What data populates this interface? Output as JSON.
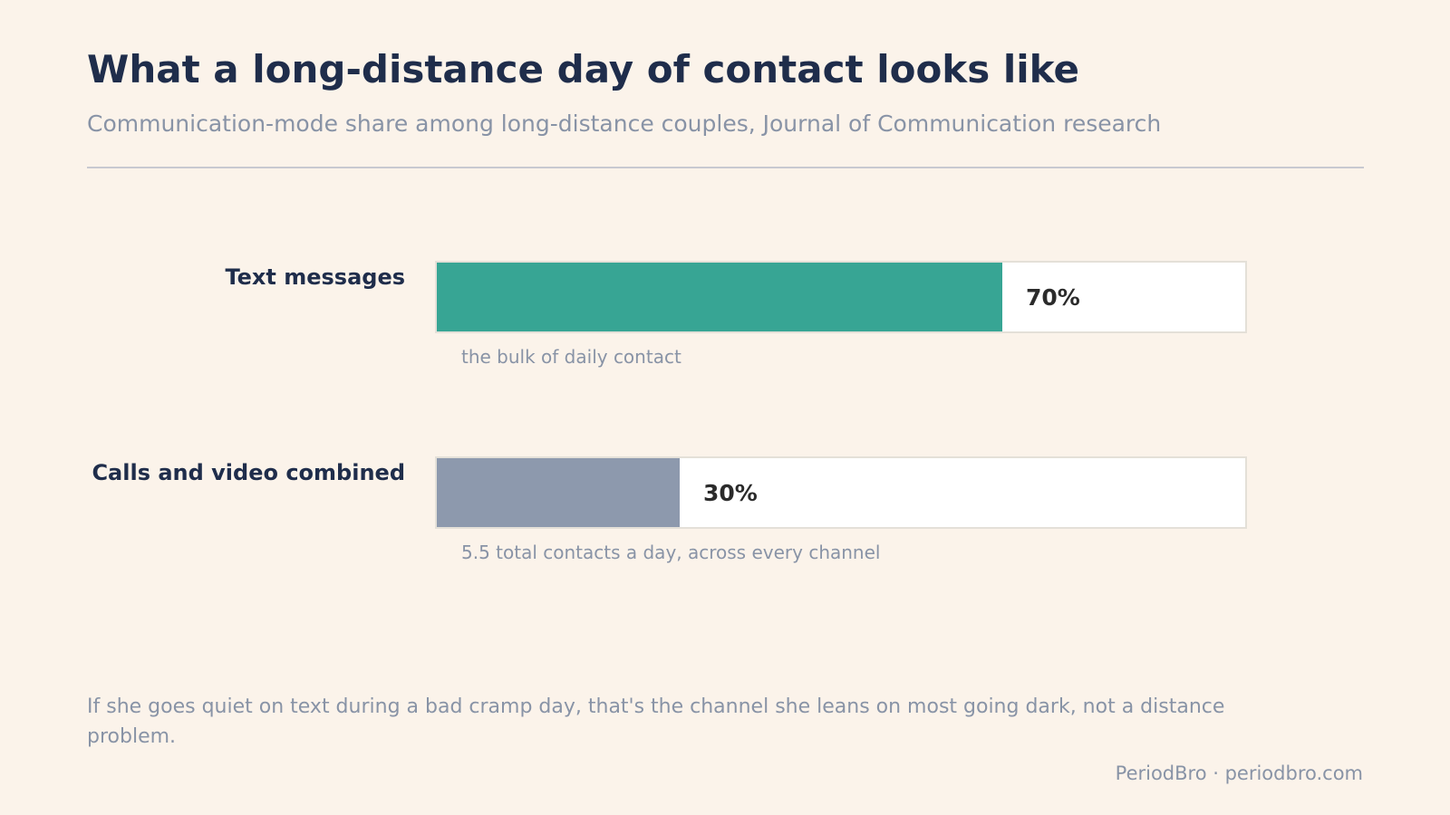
{
  "title": "What a long-distance day of contact looks like",
  "subtitle": "Communication-mode share among long-distance couples, Journal of Communication research",
  "footnote": "If she goes quiet on text during a bad cramp day, that's the channel she leans on most going dark, not a distance problem.",
  "source": "PeriodBro · periodbro.com",
  "chart_data": {
    "type": "bar",
    "orientation": "horizontal",
    "categories": [
      "Text messages",
      "Calls and video combined"
    ],
    "values": [
      70,
      30
    ],
    "value_labels": [
      "70%",
      "30%"
    ],
    "notes": [
      "the bulk of daily contact",
      "5.5 total contacts a day, across every channel"
    ],
    "colors": [
      "#37a594",
      "#8d99ad"
    ],
    "xlim": [
      0,
      100
    ],
    "unit": "%"
  }
}
